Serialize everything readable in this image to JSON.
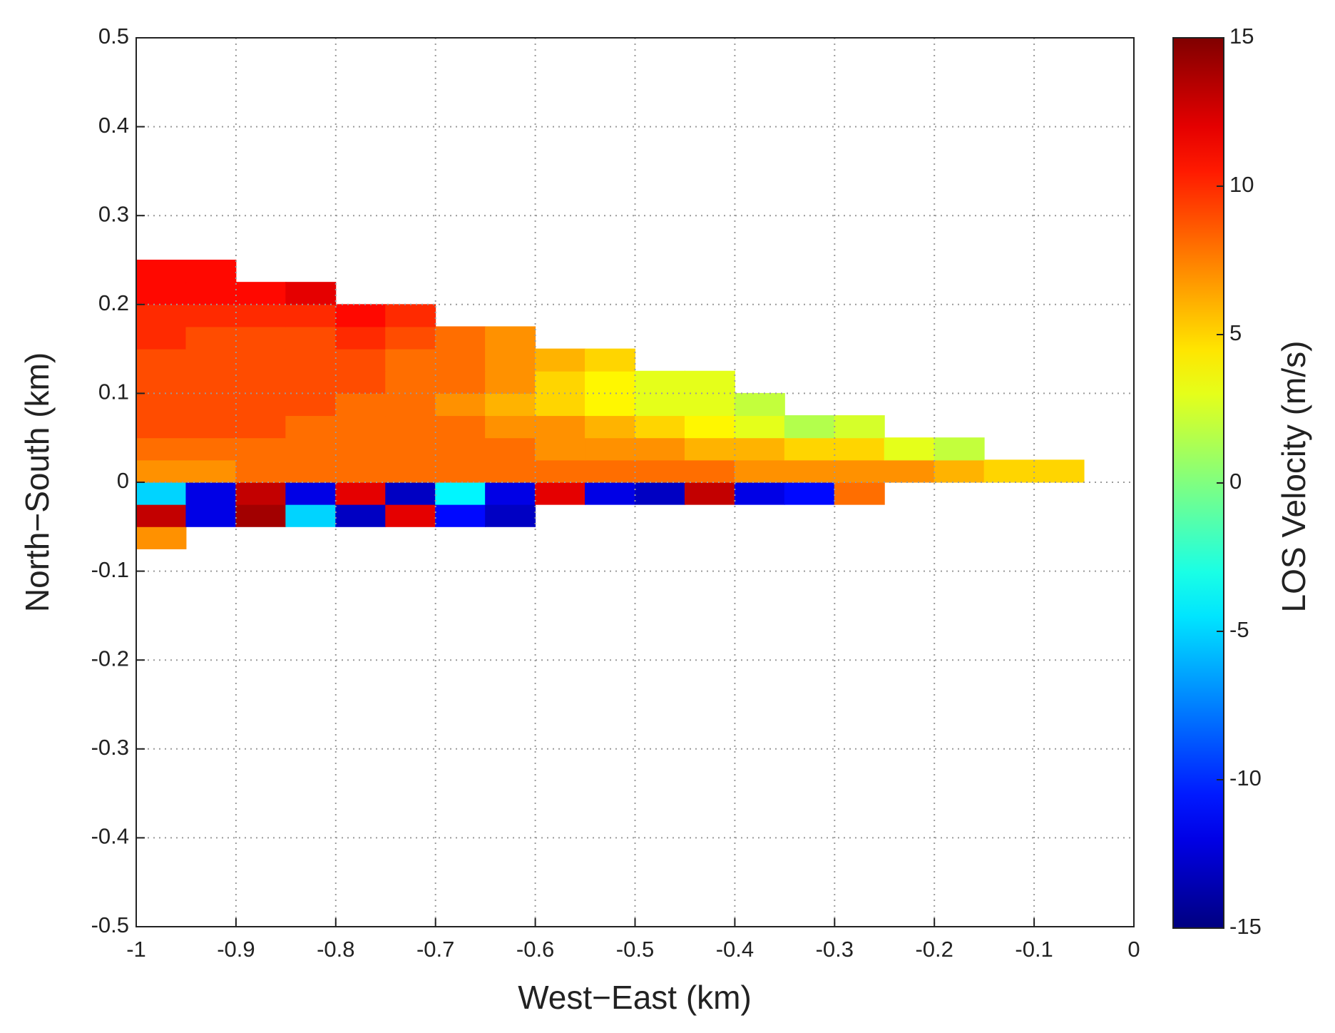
{
  "chart_data": {
    "type": "heatmap",
    "xlabel": "West−East (km)",
    "ylabel": "North−South (km)",
    "colorbar_label": "LOS Velocity (m/s)",
    "colormap": "jet",
    "grid": true,
    "xlim": [
      -1,
      0
    ],
    "ylim": [
      -0.5,
      0.5
    ],
    "xticks": [
      -1,
      -0.9,
      -0.8,
      -0.7,
      -0.6,
      -0.5,
      -0.4,
      -0.3,
      -0.2,
      -0.1,
      0
    ],
    "yticks": [
      0.5,
      0.4,
      0.3,
      0.2,
      0.1,
      0,
      -0.1,
      -0.2,
      -0.3,
      -0.4,
      -0.5
    ],
    "clim": [
      -15,
      15
    ],
    "cticks": [
      15,
      10,
      5,
      0,
      -5,
      -10,
      -15
    ],
    "x": [
      -0.975,
      -0.925,
      -0.875,
      -0.825,
      -0.775,
      -0.725,
      -0.675,
      -0.625,
      -0.575,
      -0.525,
      -0.475,
      -0.425,
      -0.375,
      -0.325,
      -0.275,
      -0.225,
      -0.175,
      -0.125,
      -0.075
    ],
    "y": [
      -0.0625,
      -0.0375,
      -0.0125,
      0.0125,
      0.0375,
      0.0625,
      0.0875,
      0.1125,
      0.1375,
      0.1625,
      0.1875,
      0.2125,
      0.2375,
      0.2625
    ],
    "values": [
      [
        7,
        null,
        null,
        null,
        null,
        null,
        null,
        null,
        null,
        null,
        null,
        null,
        null,
        null,
        null,
        null,
        null,
        null,
        null
      ],
      [
        13,
        -12,
        14,
        -5,
        -13,
        12,
        -11,
        -13,
        null,
        null,
        null,
        null,
        null,
        null,
        null,
        null,
        null,
        null,
        null
      ],
      [
        -5,
        -12,
        13,
        -12,
        12,
        -13,
        -4,
        -12,
        12,
        -12,
        -13,
        13,
        -12,
        -11,
        8,
        null,
        null,
        null,
        null
      ],
      [
        7,
        7,
        8,
        8,
        8,
        8,
        8,
        8,
        8,
        8,
        8,
        8,
        7,
        7,
        7,
        7,
        6,
        5,
        5
      ],
      [
        8,
        8,
        8,
        8,
        8,
        8,
        8,
        8,
        7,
        7,
        7,
        6,
        6,
        5,
        5,
        3,
        2,
        null,
        null
      ],
      [
        9,
        9,
        9,
        8,
        8,
        8,
        8,
        7,
        7,
        6,
        5,
        4,
        3,
        1.5,
        2.5,
        null,
        null,
        null,
        null
      ],
      [
        9,
        9,
        9,
        9,
        8,
        8,
        7,
        6,
        5,
        4,
        3,
        3,
        2,
        null,
        null,
        null,
        null,
        null,
        null
      ],
      [
        9,
        9,
        9,
        9,
        9,
        8,
        8,
        7,
        5,
        4,
        3,
        3,
        null,
        null,
        null,
        null,
        null,
        null,
        null
      ],
      [
        9,
        9,
        9,
        9,
        9,
        8,
        8,
        7,
        6,
        5,
        null,
        null,
        null,
        null,
        null,
        null,
        null,
        null,
        null
      ],
      [
        10,
        9,
        9,
        9,
        10,
        9,
        8,
        7,
        null,
        null,
        null,
        null,
        null,
        null,
        null,
        null,
        null,
        null,
        null
      ],
      [
        10,
        10,
        10,
        10,
        11,
        10,
        null,
        null,
        null,
        null,
        null,
        null,
        null,
        null,
        null,
        null,
        null,
        null,
        null
      ],
      [
        11,
        11,
        11,
        12,
        null,
        null,
        null,
        null,
        null,
        null,
        null,
        null,
        null,
        null,
        null,
        null,
        null,
        null,
        null
      ],
      [
        11,
        11,
        null,
        null,
        null,
        null,
        null,
        null,
        null,
        null,
        null,
        null,
        null,
        null,
        null,
        null,
        null,
        null,
        null
      ],
      [
        null,
        null,
        null,
        null,
        null,
        null,
        null,
        null,
        null,
        null,
        null,
        null,
        null,
        null,
        null,
        null,
        null,
        null,
        null
      ]
    ]
  }
}
